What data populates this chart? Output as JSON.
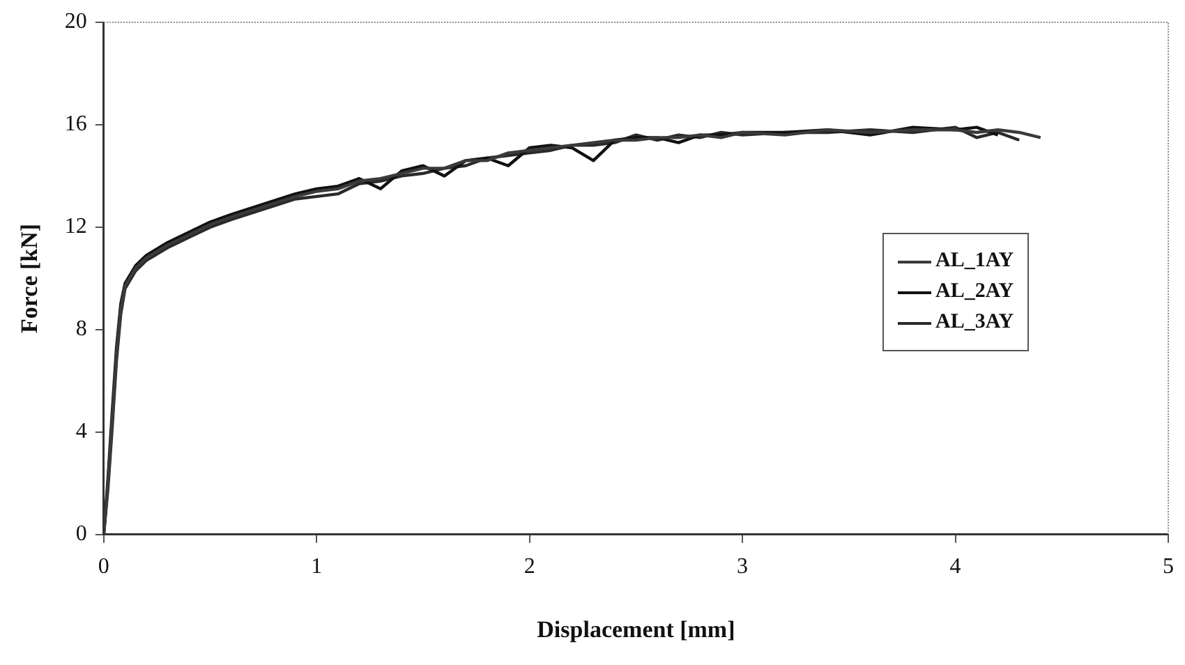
{
  "chart_data": {
    "type": "line",
    "xlabel": "Displacement [mm]",
    "ylabel": "Force [kN]",
    "xlim": [
      0,
      5
    ],
    "ylim": [
      0,
      20
    ],
    "xticks": [
      0,
      1,
      2,
      3,
      4,
      5
    ],
    "yticks": [
      0,
      4,
      8,
      12,
      16,
      20
    ],
    "grid": false,
    "legend": "right",
    "marker": "none",
    "line_style": "solid",
    "series": [
      {
        "name": "AL_1AY",
        "color": "#3a3a3a",
        "x": [
          0,
          0.02,
          0.04,
          0.06,
          0.08,
          0.1,
          0.15,
          0.2,
          0.3,
          0.4,
          0.5,
          0.6,
          0.75,
          0.9,
          1,
          1.1,
          1.2,
          1.3,
          1.4,
          1.5,
          1.6,
          1.7,
          1.8,
          1.9,
          2,
          2.1,
          2.2,
          2.3,
          2.4,
          2.5,
          2.6,
          2.7,
          2.8,
          2.9,
          3,
          3.2,
          3.4,
          3.6,
          3.8,
          4,
          4.1,
          4.2,
          4.3,
          4.4
        ],
        "values": [
          0,
          2,
          4.5,
          7,
          8.8,
          9.7,
          10.4,
          10.8,
          11.3,
          11.7,
          12.1,
          12.4,
          12.8,
          13.2,
          13.4,
          13.5,
          13.8,
          13.9,
          14.1,
          14.3,
          14.3,
          14.6,
          14.6,
          14.9,
          15.0,
          15.1,
          15.2,
          15.3,
          15.4,
          15.4,
          15.5,
          15.5,
          15.6,
          15.5,
          15.7,
          15.6,
          15.8,
          15.7,
          15.8,
          15.8,
          15.7,
          15.8,
          15.7,
          15.5
        ]
      },
      {
        "name": "AL_2AY",
        "color": "#111111",
        "x": [
          0,
          0.02,
          0.04,
          0.06,
          0.08,
          0.1,
          0.15,
          0.2,
          0.3,
          0.4,
          0.5,
          0.6,
          0.75,
          0.9,
          1,
          1.1,
          1.2,
          1.3,
          1.4,
          1.5,
          1.6,
          1.7,
          1.8,
          1.9,
          2,
          2.1,
          2.2,
          2.3,
          2.4,
          2.5,
          2.6,
          2.7,
          2.8,
          2.9,
          3,
          3.2,
          3.4,
          3.6,
          3.8,
          4,
          4.1,
          4.2
        ],
        "values": [
          0,
          2.2,
          4.8,
          7.3,
          9,
          9.8,
          10.5,
          10.9,
          11.4,
          11.8,
          12.2,
          12.5,
          12.9,
          13.3,
          13.5,
          13.6,
          13.9,
          13.5,
          14.2,
          14.4,
          14.0,
          14.6,
          14.7,
          14.4,
          15.1,
          15.2,
          15.1,
          14.6,
          15.4,
          15.5,
          15.5,
          15.3,
          15.6,
          15.6,
          15.7,
          15.7,
          15.8,
          15.6,
          15.9,
          15.8,
          15.9,
          15.6
        ]
      },
      {
        "name": "AL_3AY",
        "color": "#2a2a2a",
        "x": [
          0,
          0.02,
          0.04,
          0.06,
          0.08,
          0.1,
          0.15,
          0.2,
          0.3,
          0.4,
          0.5,
          0.6,
          0.75,
          0.9,
          1,
          1.1,
          1.2,
          1.3,
          1.4,
          1.5,
          1.6,
          1.7,
          1.8,
          1.9,
          2,
          2.1,
          2.2,
          2.3,
          2.4,
          2.5,
          2.6,
          2.7,
          2.8,
          2.9,
          3,
          3.2,
          3.4,
          3.6,
          3.8,
          4,
          4.1,
          4.2,
          4.3
        ],
        "values": [
          0,
          1.8,
          4.2,
          6.8,
          8.6,
          9.6,
          10.3,
          10.7,
          11.2,
          11.6,
          12.0,
          12.3,
          12.7,
          13.1,
          13.2,
          13.3,
          13.7,
          13.8,
          14.0,
          14.1,
          14.3,
          14.4,
          14.7,
          14.8,
          14.9,
          15.0,
          15.2,
          15.2,
          15.3,
          15.6,
          15.4,
          15.6,
          15.5,
          15.7,
          15.6,
          15.7,
          15.7,
          15.8,
          15.7,
          15.9,
          15.5,
          15.7,
          15.4
        ]
      }
    ]
  }
}
